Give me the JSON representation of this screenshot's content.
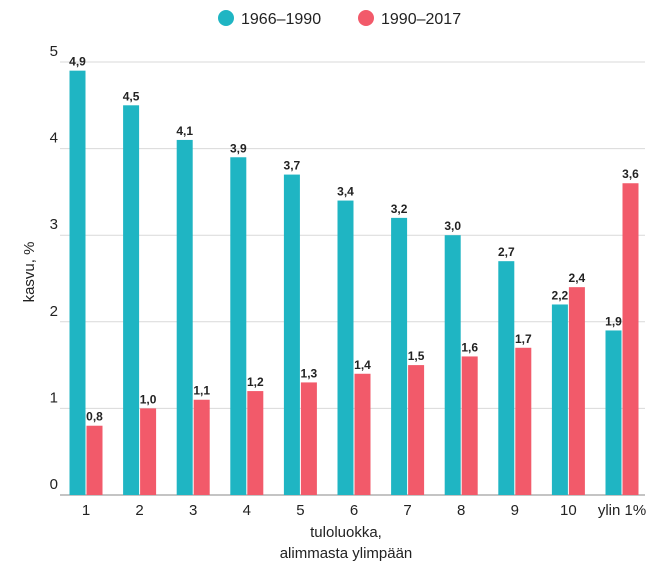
{
  "chart_data": {
    "type": "bar",
    "categories": [
      "1",
      "2",
      "3",
      "4",
      "5",
      "6",
      "7",
      "8",
      "9",
      "10",
      "ylin 1%"
    ],
    "series": [
      {
        "name": "1966–1990",
        "color": "#1FB5C3",
        "values": [
          4.9,
          4.5,
          4.1,
          3.9,
          3.7,
          3.4,
          3.2,
          3.0,
          2.7,
          2.2,
          1.9
        ],
        "labels": [
          "4,9",
          "4,5",
          "4,1",
          "3,9",
          "3,7",
          "3,4",
          "3,2",
          "3,0",
          "2,7",
          "2,2",
          "1,9"
        ]
      },
      {
        "name": "1990–2017",
        "color": "#F25A6A",
        "values": [
          0.8,
          1.0,
          1.1,
          1.2,
          1.3,
          1.4,
          1.5,
          1.6,
          1.7,
          2.4,
          3.6
        ],
        "labels": [
          "0,8",
          "1,0",
          "1,1",
          "1,2",
          "1,3",
          "1,4",
          "1,5",
          "1,6",
          "1,7",
          "2,4",
          "3,6"
        ]
      }
    ],
    "ylabel": "kasvu, %",
    "xlabel_lines": [
      "tuloluokka,",
      "alimmasta ylimpään"
    ],
    "ylim": [
      0,
      5
    ],
    "yticks": [
      0,
      1,
      2,
      3,
      4,
      5
    ],
    "ytick_labels": [
      "0",
      "1",
      "2",
      "3",
      "4",
      "5"
    ],
    "grid": true,
    "legend_position": "top"
  }
}
